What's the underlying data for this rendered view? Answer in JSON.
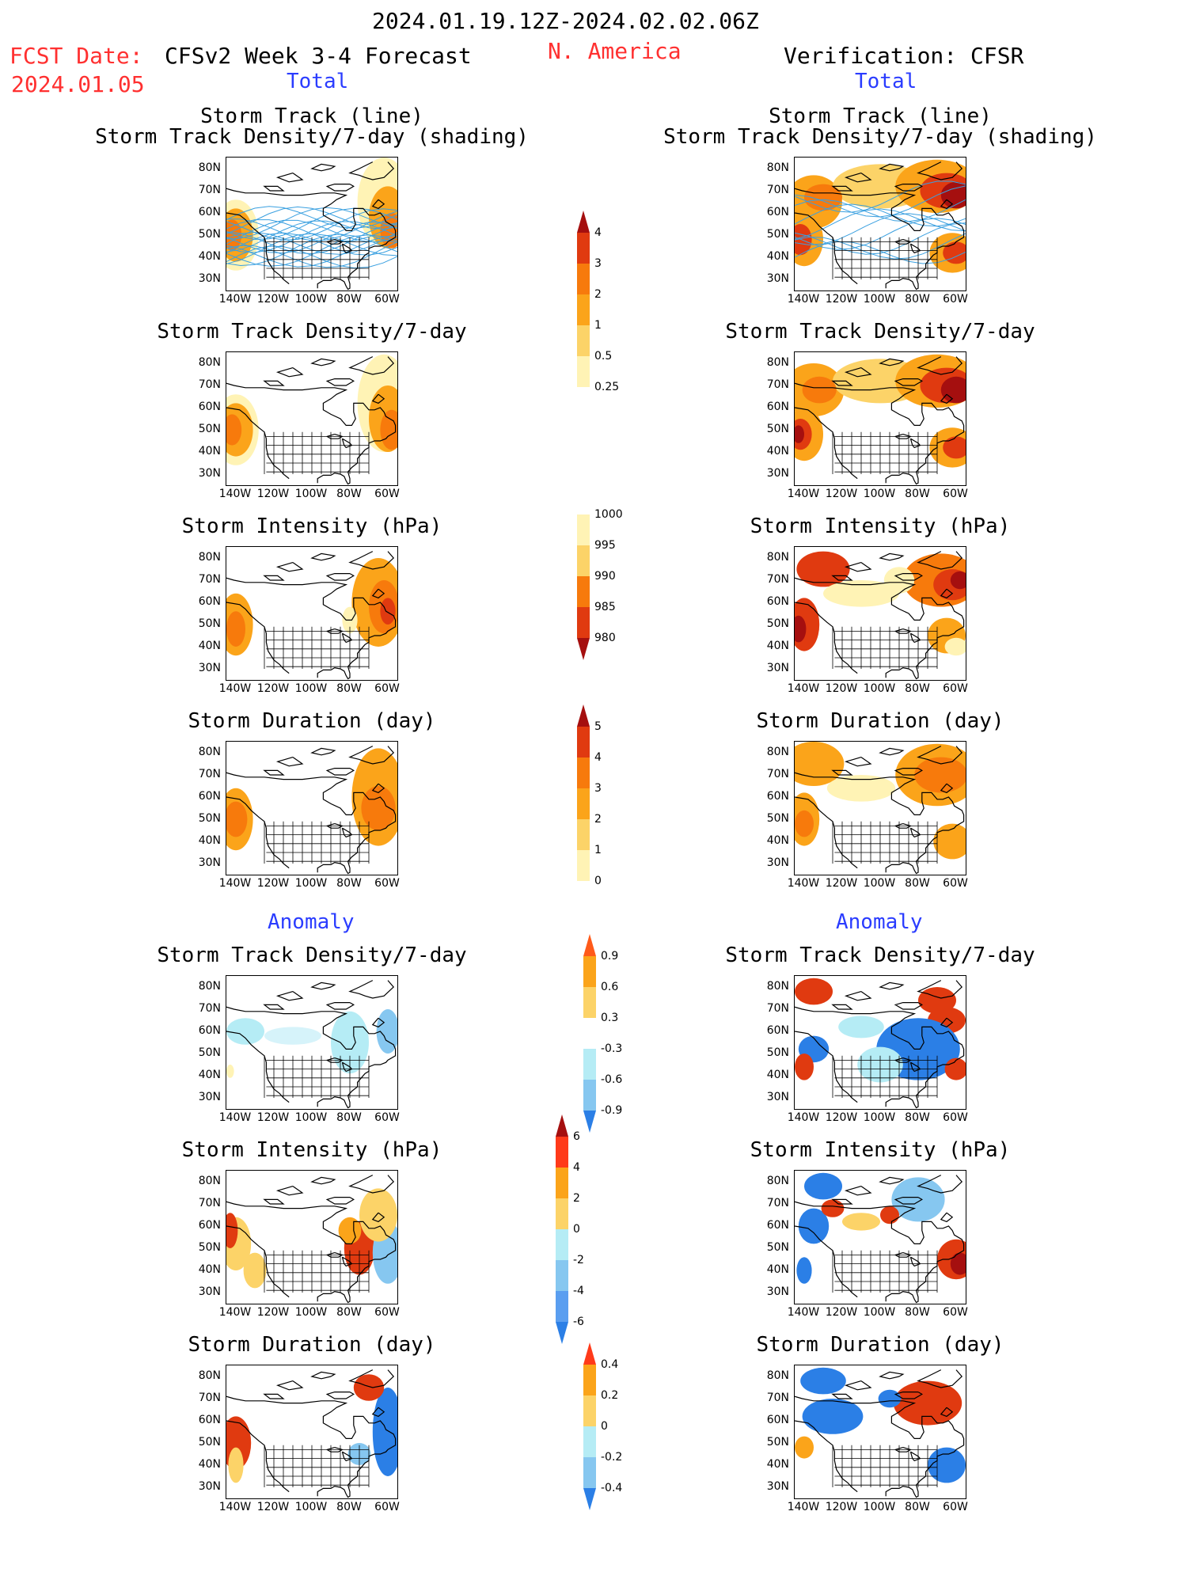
{
  "header": {
    "date_range": "2024.01.19.12Z-2024.02.02.06Z",
    "fcst_date_label": "FCST Date:",
    "fcst_date_value": "2024.01.05",
    "left_title": "CFSv2 Week 3-4 Forecast",
    "region": "N. America",
    "right_title": "Verification: CFSR"
  },
  "sections": {
    "total": "Total",
    "anomaly": "Anomaly"
  },
  "panel_titles": {
    "track_line": "Storm Track (line)",
    "track_shading": "Storm Track Density/7-day (shading)",
    "density": "Storm Track Density/7-day",
    "intensity": "Storm Intensity (hPa)",
    "duration": "Storm Duration (day)"
  },
  "axes": {
    "lat_ticks": [
      "80N",
      "70N",
      "60N",
      "50N",
      "40N",
      "30N"
    ],
    "lon_ticks": [
      "140W",
      "120W",
      "100W",
      "80W",
      "60W"
    ]
  },
  "colorbars": {
    "density_total": {
      "labels": [
        "4",
        "3",
        "2",
        "1",
        "0.5",
        "0.25"
      ],
      "colors": [
        "#a50f0f",
        "#e03a10",
        "#f77a0c",
        "#fba41a",
        "#fcd368",
        "#fff3b5"
      ]
    },
    "intensity_total": {
      "labels": [
        "1000",
        "995",
        "990",
        "985",
        "980"
      ],
      "colors": [
        "#fff3b5",
        "#fcd368",
        "#f77a0c",
        "#e03a10",
        "#a50f0f"
      ]
    },
    "duration_total": {
      "labels": [
        "5",
        "4",
        "3",
        "2",
        "1",
        "0"
      ],
      "colors": [
        "#a50f0f",
        "#e03a10",
        "#f77a0c",
        "#fba41a",
        "#fcd368",
        "#fff3b5"
      ]
    },
    "density_anom": {
      "labels": [
        "0.9",
        "0.6",
        "0.3",
        "-0.3",
        "-0.6",
        "-0.9"
      ],
      "colors": [
        "#ff5a1a",
        "#fba41a",
        "#fcd368",
        "#ffffff",
        "#b5ecf5",
        "#86c7f0",
        "#2b7fe6"
      ]
    },
    "intensity_anom": {
      "labels": [
        "6",
        "4",
        "2",
        "0",
        "-2",
        "-4",
        "-6"
      ],
      "colors": [
        "#a50f0f",
        "#ff3a1a",
        "#fba41a",
        "#fcd368",
        "#b5ecf5",
        "#86c7f0",
        "#5a9ef0",
        "#2b7fe6"
      ]
    },
    "duration_anom": {
      "labels": [
        "0.4",
        "0.2",
        "0",
        "-0.2",
        "-0.4"
      ],
      "colors": [
        "#ff3a1a",
        "#fba41a",
        "#fcd368",
        "#b5ecf5",
        "#86c7f0",
        "#2b7fe6"
      ]
    }
  },
  "colors": {
    "title_red": "#ff3030",
    "section_blue": "#2a3cff",
    "track_line": "#3aa0e0"
  }
}
